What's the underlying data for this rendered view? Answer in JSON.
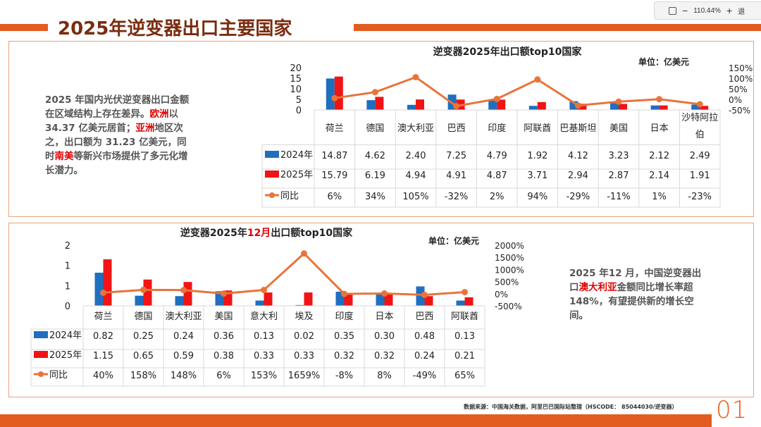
{
  "viewer": {
    "zoom": "110.44%",
    "exit_label": "退"
  },
  "page_title": "2025年逆变器出口主要国家",
  "notes": {
    "top": [
      {
        "t": "2025 年国内光伏逆变器出口金额在区域结构上存在差异。",
        "hl": false
      },
      {
        "t": "欧洲",
        "hl": true
      },
      {
        "t": "以 34.37 亿美元居首；",
        "hl": false
      },
      {
        "t": "亚洲",
        "hl": true
      },
      {
        "t": "地区次之，出口额为 31.23 亿美元，同时",
        "hl": false
      },
      {
        "t": "南美",
        "hl": true
      },
      {
        "t": "等新兴市场提供了多元化增长潜力。",
        "hl": false
      }
    ],
    "bottom": [
      {
        "t": "2025 年12 月，中国逆变器出口",
        "hl": false
      },
      {
        "t": "澳大利亚",
        "hl": true
      },
      {
        "t": "金额同比增长率超148%，有望提供新的增长空间。",
        "hl": false
      }
    ]
  },
  "chart_data": [
    {
      "type": "bar",
      "title": "逆变器2025年出口额top10国家",
      "unit": "单位：亿美元",
      "categories": [
        "荷兰",
        "德国",
        "澳大利亚",
        "巴西",
        "印度",
        "阿联酋",
        "巴基斯坦",
        "美国",
        "日本",
        "沙特阿拉伯"
      ],
      "series": [
        {
          "name": "2024年",
          "color": "#1f6fbf",
          "values": [
            14.87,
            4.62,
            2.4,
            7.25,
            4.79,
            1.92,
            4.12,
            3.23,
            2.12,
            2.49
          ],
          "labels": [
            "14.87",
            "4.62",
            "2.40",
            "7.25",
            "4.79",
            "1.92",
            "4.12",
            "3.23",
            "2.12",
            "2.49"
          ]
        },
        {
          "name": "2025年",
          "color": "#f01414",
          "values": [
            15.79,
            6.19,
            4.94,
            4.91,
            4.87,
            3.71,
            2.94,
            2.87,
            2.14,
            1.91
          ],
          "labels": [
            "15.79",
            "6.19",
            "4.94",
            "4.91",
            "4.87",
            "3.71",
            "2.94",
            "2.87",
            "2.14",
            "1.91"
          ]
        },
        {
          "name": "同比",
          "color": "#e8743b",
          "axis": "right",
          "values": [
            6,
            34,
            105,
            -32,
            2,
            94,
            -29,
            -11,
            1,
            -23
          ],
          "labels": [
            "6%",
            "34%",
            "105%",
            "-32%",
            "2%",
            "94%",
            "-29%",
            "-11%",
            "1%",
            "-23%"
          ]
        }
      ],
      "ylim": [
        0,
        20
      ],
      "yticks": [
        "0",
        "5",
        "10",
        "15",
        "20"
      ],
      "y2lim": [
        -50,
        150
      ],
      "y2ticks": [
        "-50%",
        "0%",
        "50%",
        "100%",
        "150%"
      ]
    },
    {
      "type": "bar",
      "title_parts": [
        "逆变器2025年",
        "12月",
        "出口额top10国家"
      ],
      "unit": "单位：亿美元",
      "categories": [
        "荷兰",
        "德国",
        "澳大利亚",
        "美国",
        "意大利",
        "埃及",
        "印度",
        "日本",
        "巴西",
        "阿联酋"
      ],
      "series": [
        {
          "name": "2024年",
          "color": "#1f6fbf",
          "values": [
            0.82,
            0.25,
            0.24,
            0.36,
            0.13,
            0.02,
            0.35,
            0.3,
            0.48,
            0.13
          ],
          "labels": [
            "0.82",
            "0.25",
            "0.24",
            "0.36",
            "0.13",
            "0.02",
            "0.35",
            "0.30",
            "0.48",
            "0.13"
          ]
        },
        {
          "name": "2025年",
          "color": "#f01414",
          "values": [
            1.15,
            0.65,
            0.59,
            0.38,
            0.33,
            0.33,
            0.32,
            0.32,
            0.24,
            0.21
          ],
          "labels": [
            "1.15",
            "0.65",
            "0.59",
            "0.38",
            "0.33",
            "0.33",
            "0.32",
            "0.32",
            "0.24",
            "0.21"
          ]
        },
        {
          "name": "同比",
          "color": "#e8743b",
          "axis": "right",
          "values": [
            40,
            158,
            148,
            6,
            153,
            1659,
            -8,
            8,
            -49,
            65
          ],
          "labels": [
            "40%",
            "158%",
            "148%",
            "6%",
            "153%",
            "1659%",
            "-8%",
            "8%",
            "-49%",
            "65%"
          ]
        }
      ],
      "ylim": [
        0,
        1.5
      ],
      "yticks": [
        "0",
        "1",
        "1",
        "2"
      ],
      "y2lim": [
        -500,
        2000
      ],
      "y2ticks": [
        "-500%",
        "0%",
        "500%",
        "1000%",
        "1500%",
        "2000%"
      ]
    }
  ],
  "footer": {
    "source": "数据来源：中国海关数据，阿里巴巴国际站整理（HSCODE： 85044030/逆变器）",
    "page_number": "01"
  }
}
